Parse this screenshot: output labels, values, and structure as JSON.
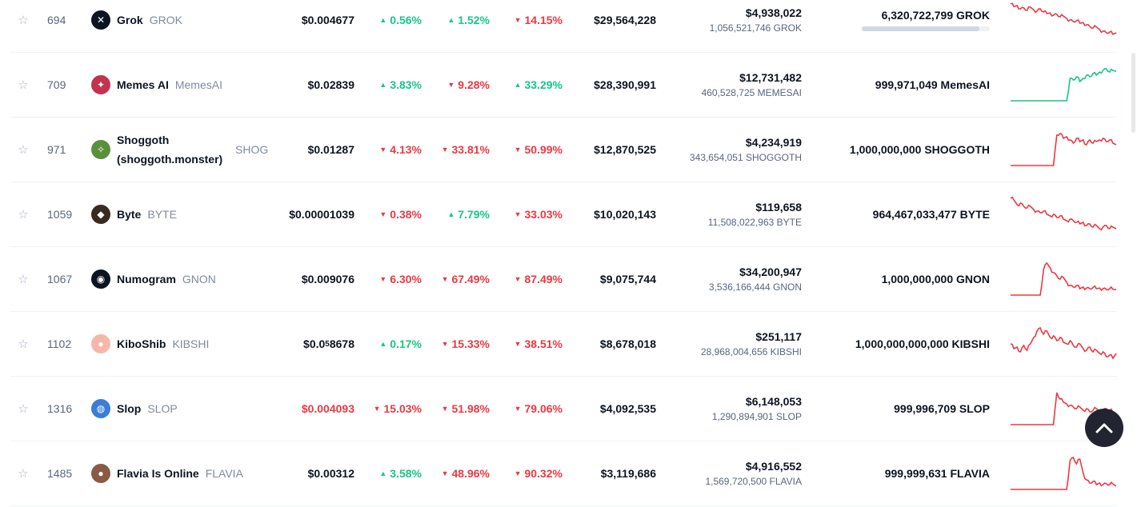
{
  "rows": [
    {
      "rank": "694",
      "name": "Grok",
      "symbol": "GROK",
      "price": "$0.004677",
      "price_sub": null,
      "price_tail": null,
      "price_color": "normal",
      "h1": {
        "dir": "up",
        "v": "0.56%"
      },
      "h24": {
        "dir": "up",
        "v": "1.52%"
      },
      "d7": {
        "dir": "down",
        "v": "14.15%"
      },
      "mcap": "$29,564,228",
      "vol_usd": "$4,938,022",
      "vol_coin": "1,056,521,746 GROK",
      "supply": "6,320,722,799 GROK",
      "supply_fraction": 0.92,
      "spark_color": "#ea3943",
      "spark": [
        0.0,
        0.08,
        0.05,
        0.15,
        0.12,
        0.2,
        0.1,
        0.18,
        0.22,
        0.15,
        0.25,
        0.3,
        0.28,
        0.35,
        0.32,
        0.4,
        0.38,
        0.45,
        0.5,
        0.55,
        0.52,
        0.6,
        0.58,
        0.65,
        0.7,
        0.75,
        0.72,
        0.8,
        0.85,
        0.9,
        0.88,
        0.95,
        0.9
      ],
      "logo_color": "#0d1421",
      "logo_icon": "slash-icon"
    },
    {
      "rank": "709",
      "name": "Memes AI",
      "symbol": "MemesAI",
      "price": "$0.02839",
      "price_sub": null,
      "price_tail": null,
      "price_color": "normal",
      "h1": {
        "dir": "up",
        "v": "3.83%"
      },
      "h24": {
        "dir": "down",
        "v": "9.28%"
      },
      "d7": {
        "dir": "up",
        "v": "33.29%"
      },
      "mcap": "$28,390,991",
      "vol_usd": "$12,731,482",
      "vol_coin": "460,528,725 MEMESAI",
      "supply": "999,971,049 MemesAI",
      "supply_fraction": null,
      "spark_color": "#16c784",
      "spark": [
        1.0,
        1.0,
        1.0,
        1.0,
        1.0,
        1.0,
        1.0,
        1.0,
        1.0,
        1.0,
        1.0,
        1.0,
        1.0,
        1.0,
        1.0,
        1.0,
        1.0,
        1.0,
        0.3,
        0.35,
        0.25,
        0.4,
        0.3,
        0.2,
        0.25,
        0.15,
        0.2,
        0.1,
        0.05,
        0.0,
        0.1,
        0.05,
        0.08
      ],
      "logo_color": "#c2334d",
      "logo_icon": "dragon-icon"
    },
    {
      "rank": "971",
      "name": "Shoggoth (shoggoth.monster)",
      "symbol": "SHOG",
      "price": "$0.01287",
      "price_sub": null,
      "price_tail": null,
      "price_color": "normal",
      "h1": {
        "dir": "down",
        "v": "4.13%"
      },
      "h24": {
        "dir": "down",
        "v": "33.81%"
      },
      "d7": {
        "dir": "down",
        "v": "50.99%"
      },
      "mcap": "$12,870,525",
      "vol_usd": "$4,234,919",
      "vol_coin": "343,654,051 SHOGGOTH",
      "supply": "1,000,000,000 SHOGGOTH",
      "supply_fraction": null,
      "spark_color": "#ea3943",
      "spark": [
        1.0,
        1.0,
        1.0,
        1.0,
        1.0,
        1.0,
        1.0,
        1.0,
        1.0,
        1.0,
        1.0,
        1.0,
        1.0,
        1.0,
        0.05,
        0.0,
        0.15,
        0.1,
        0.2,
        0.3,
        0.15,
        0.25,
        0.2,
        0.35,
        0.2,
        0.3,
        0.25,
        0.2,
        0.15,
        0.25,
        0.2,
        0.3,
        0.35
      ],
      "logo_color": "#5a8f3c",
      "logo_icon": "creature-icon"
    },
    {
      "rank": "1059",
      "name": "Byte",
      "symbol": "BYTE",
      "price": "$0.00001039",
      "price_sub": null,
      "price_tail": null,
      "price_color": "normal",
      "h1": {
        "dir": "down",
        "v": "0.38%"
      },
      "h24": {
        "dir": "up",
        "v": "7.79%"
      },
      "d7": {
        "dir": "down",
        "v": "33.03%"
      },
      "mcap": "$10,020,143",
      "vol_usd": "$119,658",
      "vol_coin": "11,508,022,963 BYTE",
      "supply": "964,467,033,477 BYTE",
      "supply_fraction": null,
      "spark_color": "#ea3943",
      "spark": [
        0.0,
        0.05,
        0.2,
        0.15,
        0.25,
        0.3,
        0.25,
        0.35,
        0.4,
        0.45,
        0.4,
        0.5,
        0.55,
        0.5,
        0.6,
        0.55,
        0.65,
        0.7,
        0.65,
        0.7,
        0.75,
        0.8,
        0.75,
        0.85,
        0.8,
        0.9,
        0.85,
        0.95,
        0.9,
        0.85,
        0.95,
        0.9,
        0.95
      ],
      "logo_color": "#3a2b20",
      "logo_icon": "dog-icon"
    },
    {
      "rank": "1067",
      "name": "Numogram",
      "symbol": "GNON",
      "price": "$0.009076",
      "price_sub": null,
      "price_tail": null,
      "price_color": "normal",
      "h1": {
        "dir": "down",
        "v": "6.30%"
      },
      "h24": {
        "dir": "down",
        "v": "67.49%"
      },
      "d7": {
        "dir": "down",
        "v": "87.49%"
      },
      "mcap": "$9,075,744",
      "vol_usd": "$34,200,947",
      "vol_coin": "3,536,166,444 GNON",
      "supply": "1,000,000,000 GNON",
      "supply_fraction": null,
      "spark_color": "#ea3943",
      "spark": [
        1.0,
        1.0,
        1.0,
        1.0,
        1.0,
        1.0,
        1.0,
        1.0,
        1.0,
        1.0,
        0.2,
        0.0,
        0.15,
        0.3,
        0.4,
        0.5,
        0.45,
        0.6,
        0.7,
        0.75,
        0.7,
        0.8,
        0.75,
        0.78,
        0.8,
        0.76,
        0.8,
        0.78,
        0.8,
        0.82,
        0.8,
        0.82,
        0.83
      ],
      "logo_color": "#0d1421",
      "logo_icon": "circle-icon"
    },
    {
      "rank": "1102",
      "name": "KiboShib",
      "symbol": "KIBSHI",
      "price": "$0.0",
      "price_sub": "5",
      "price_tail": "8678",
      "price_color": "normal",
      "h1": {
        "dir": "up",
        "v": "0.17%"
      },
      "h24": {
        "dir": "down",
        "v": "15.33%"
      },
      "d7": {
        "dir": "down",
        "v": "38.51%"
      },
      "mcap": "$8,678,018",
      "vol_usd": "$251,117",
      "vol_coin": "28,968,004,656 KIBSHI",
      "supply": "1,000,000,000,000 KIBSHI",
      "supply_fraction": null,
      "spark_color": "#ea3943",
      "spark": [
        0.5,
        0.65,
        0.6,
        0.75,
        0.55,
        0.7,
        0.5,
        0.3,
        0.1,
        0.0,
        0.2,
        0.1,
        0.3,
        0.25,
        0.4,
        0.3,
        0.45,
        0.5,
        0.4,
        0.55,
        0.6,
        0.5,
        0.65,
        0.7,
        0.6,
        0.75,
        0.7,
        0.8,
        0.75,
        0.9,
        0.85,
        0.95,
        0.8
      ],
      "logo_color": "#f5b8a8",
      "logo_icon": "shiba-icon"
    },
    {
      "rank": "1316",
      "name": "Slop",
      "symbol": "SLOP",
      "price": "$0.004093",
      "price_sub": null,
      "price_tail": null,
      "price_color": "down",
      "h1": {
        "dir": "down",
        "v": "15.03%"
      },
      "h24": {
        "dir": "down",
        "v": "51.98%"
      },
      "d7": {
        "dir": "down",
        "v": "79.06%"
      },
      "mcap": "$4,092,535",
      "vol_usd": "$6,148,053",
      "vol_coin": "1,290,894,901 SLOP",
      "supply": "999,996,709 SLOP",
      "supply_fraction": null,
      "spark_color": "#ea3943",
      "spark": [
        1.0,
        1.0,
        1.0,
        1.0,
        1.0,
        1.0,
        1.0,
        1.0,
        1.0,
        1.0,
        1.0,
        1.0,
        1.0,
        1.0,
        0.0,
        0.2,
        0.3,
        0.35,
        0.4,
        0.45,
        0.5,
        0.45,
        0.55,
        0.5,
        0.6,
        0.55,
        0.5,
        0.6,
        0.55,
        0.5,
        0.55,
        0.6,
        0.65
      ],
      "logo_color": "#3b7dd8",
      "logo_icon": "figure-icon"
    },
    {
      "rank": "1485",
      "name": "Flavia Is Online",
      "symbol": "FLAVIA",
      "price": "$0.00312",
      "price_sub": null,
      "price_tail": null,
      "price_color": "normal",
      "h1": {
        "dir": "up",
        "v": "3.58%"
      },
      "h24": {
        "dir": "down",
        "v": "48.96%"
      },
      "d7": {
        "dir": "down",
        "v": "90.32%"
      },
      "mcap": "$3,119,686",
      "vol_usd": "$4,916,552",
      "vol_coin": "1,569,720,500 FLAVIA",
      "supply": "999,999,631 FLAVIA",
      "supply_fraction": null,
      "spark_color": "#ea3943",
      "spark": [
        1.0,
        1.0,
        1.0,
        1.0,
        1.0,
        1.0,
        1.0,
        1.0,
        1.0,
        1.0,
        1.0,
        1.0,
        1.0,
        1.0,
        1.0,
        1.0,
        1.0,
        1.0,
        0.1,
        0.0,
        0.2,
        0.05,
        0.5,
        0.7,
        0.8,
        0.75,
        0.85,
        0.8,
        0.85,
        0.82,
        0.85,
        0.83,
        0.9
      ],
      "logo_color": "#8a5a44",
      "logo_icon": "portrait-icon"
    }
  ]
}
